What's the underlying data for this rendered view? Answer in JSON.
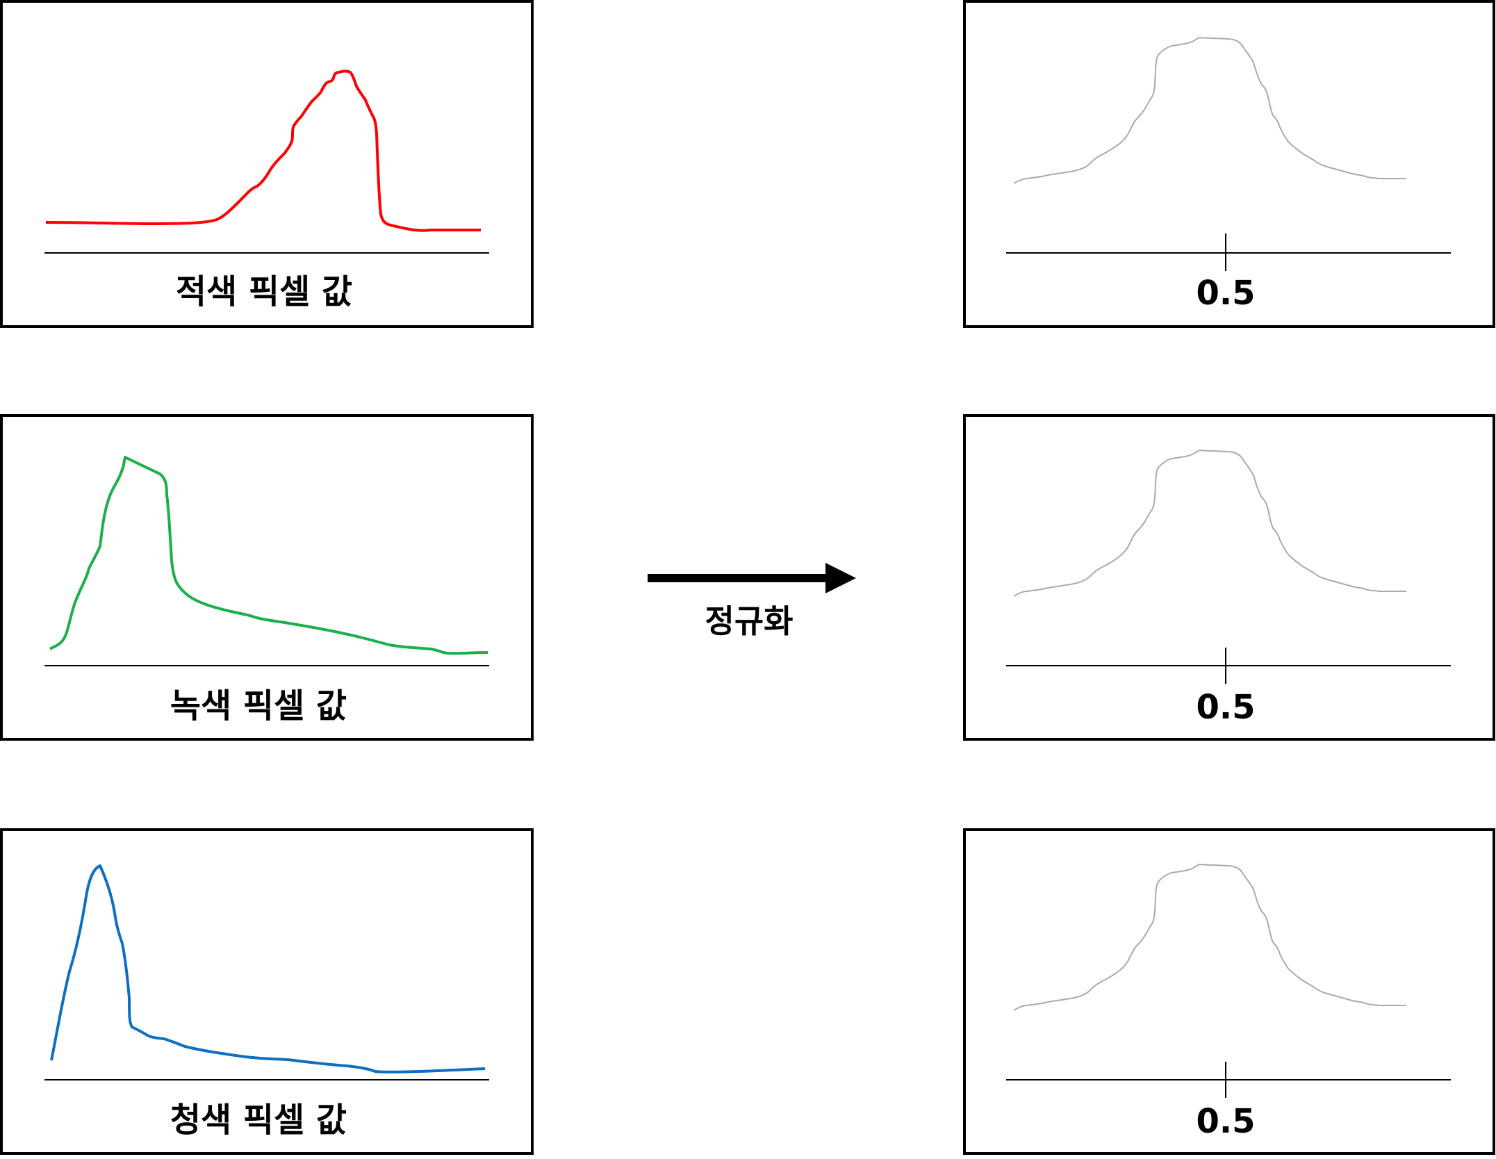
{
  "left_panels": [
    {
      "label": "적색 픽셀 값",
      "color": "#ff0000"
    },
    {
      "label": "녹색 픽셀 값",
      "color": "#1aaf4b"
    },
    {
      "label": "청색 픽셀 값",
      "color": "#0e6fc1"
    }
  ],
  "right_panels": [
    {
      "tick_label": "0.5",
      "color": "#aaaaaa"
    },
    {
      "tick_label": "0.5",
      "color": "#aaaaaa"
    },
    {
      "tick_label": "0.5",
      "color": "#aaaaaa"
    }
  ],
  "arrow": {
    "label": "정규화"
  }
}
